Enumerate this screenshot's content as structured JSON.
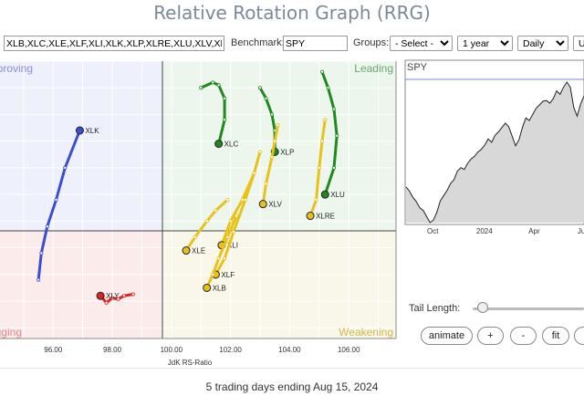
{
  "header": {
    "title": "Relative Rotation Graph (RRG)"
  },
  "controls": {
    "symbols_value": "XLB,XLC,XLE,XLF,XLI,XLK,XLP,XLRE,XLU,XLV,XLY",
    "benchmark_label": "Benchmark:",
    "benchmark_value": "SPY",
    "groups_label": "Groups:",
    "groups_selected": "- Select -",
    "period_selected": "1 year",
    "frequency_selected": "Daily",
    "trailing_selected": "U"
  },
  "quadrants": {
    "improving": "Improving",
    "leading": "Leading",
    "lagging": "Lagging",
    "weakening": "Weakening",
    "colors": {
      "improving": "#eef0fb",
      "leading": "#ecf6ec",
      "lagging": "#fcebeb",
      "weakening": "#f8f7ea"
    },
    "label_colors": {
      "improving": "#8a8ee0",
      "leading": "#6aab6a",
      "lagging": "#d88a8a",
      "weakening": "#d4b84a"
    }
  },
  "chart_data": {
    "type": "scatter",
    "xlabel": "JdK RS-Ratio",
    "x_ticks": [
      "96.00",
      "98.00",
      "100.00",
      "102.00",
      "104.00",
      "106.00"
    ],
    "xlim": [
      94.2,
      107.6
    ],
    "ylim": [
      97.3,
      102.5
    ],
    "center": [
      100,
      100
    ],
    "series": [
      {
        "name": "XLK",
        "color": "#3a4fd0",
        "head": true,
        "points": [
          [
            95.5,
            98.4
          ],
          [
            95.6,
            98.9
          ],
          [
            95.8,
            99.4
          ],
          [
            96.1,
            99.9
          ],
          [
            96.4,
            100.5
          ],
          [
            96.9,
            101.2
          ]
        ]
      },
      {
        "name": "XLY",
        "color": "#dd2222",
        "head": true,
        "points": [
          [
            98.7,
            98.13
          ],
          [
            98.4,
            98.1
          ],
          [
            98.2,
            98.04
          ],
          [
            98.0,
            98.06
          ],
          [
            97.8,
            97.97
          ],
          [
            97.6,
            98.1
          ]
        ]
      },
      {
        "name": "XLC",
        "color": "#1e8a1e",
        "head": true,
        "points": [
          [
            101.0,
            102.0
          ],
          [
            101.4,
            102.1
          ],
          [
            101.6,
            102.05
          ],
          [
            101.8,
            101.8
          ],
          [
            101.8,
            101.4
          ],
          [
            101.6,
            100.95
          ]
        ]
      },
      {
        "name": "XLP",
        "color": "#1e8a1e",
        "head": true,
        "points": [
          [
            103.0,
            102.0
          ],
          [
            103.2,
            101.8
          ],
          [
            103.4,
            101.5
          ],
          [
            103.5,
            101.2
          ],
          [
            103.5,
            100.8
          ]
        ]
      },
      {
        "name": "XLU",
        "color": "#1e8a1e",
        "head": true,
        "points": [
          [
            105.1,
            102.3
          ],
          [
            105.3,
            102.0
          ],
          [
            105.5,
            101.6
          ],
          [
            105.6,
            101.1
          ],
          [
            105.5,
            100.5
          ],
          [
            105.2,
            100.0
          ]
        ]
      },
      {
        "name": "XLV",
        "color": "#e8c21a",
        "head": true,
        "points": [
          [
            103.6,
            101.3
          ],
          [
            103.5,
            101.0
          ],
          [
            103.4,
            100.7
          ],
          [
            103.2,
            100.2
          ],
          [
            103.1,
            99.82
          ]
        ]
      },
      {
        "name": "XLRE",
        "color": "#e8c21a",
        "head": true,
        "points": [
          [
            105.2,
            101.4
          ],
          [
            105.1,
            101.0
          ],
          [
            105.0,
            100.5
          ],
          [
            104.9,
            99.9
          ],
          [
            104.7,
            99.6
          ]
        ]
      },
      {
        "name": "XLE",
        "color": "#e8c21a",
        "head": true,
        "points": [
          [
            101.9,
            99.9
          ],
          [
            101.5,
            99.7
          ],
          [
            101.2,
            99.5
          ],
          [
            100.8,
            99.2
          ],
          [
            100.5,
            98.95
          ]
        ]
      },
      {
        "name": "XLI",
        "color": "#e8c21a",
        "head": true,
        "points": [
          [
            103.0,
            100.8
          ],
          [
            102.8,
            100.4
          ],
          [
            102.4,
            99.9
          ],
          [
            102.0,
            99.5
          ],
          [
            101.7,
            99.05
          ]
        ]
      },
      {
        "name": "XLF",
        "color": "#e8c21a",
        "head": true,
        "points": [
          [
            102.8,
            100.4
          ],
          [
            102.5,
            99.9
          ],
          [
            102.1,
            99.3
          ],
          [
            101.8,
            98.8
          ],
          [
            101.5,
            98.5
          ]
        ]
      },
      {
        "name": "XLB",
        "color": "#e8c21a",
        "head": true,
        "points": [
          [
            102.2,
            99.6
          ],
          [
            101.9,
            99.2
          ],
          [
            101.6,
            98.8
          ],
          [
            101.4,
            98.5
          ],
          [
            101.2,
            98.25
          ]
        ]
      }
    ]
  },
  "spy_chart": {
    "label": "SPY",
    "x_ticks": [
      "Oct",
      "2024",
      "Apr",
      "Jul"
    ],
    "line_color": "#222222",
    "fill_color": "#d8d8d8",
    "ref_line_color": "#7a8ad8",
    "values": [
      4520,
      4470,
      4400,
      4350,
      4280,
      4250,
      4180,
      4110,
      4140,
      4230,
      4360,
      4420,
      4480,
      4560,
      4600,
      4700,
      4740,
      4720,
      4790,
      4840,
      4870,
      4920,
      4950,
      5000,
      5070,
      5030,
      5110,
      5150,
      5200,
      5250,
      5210,
      5100,
      4990,
      5060,
      5200,
      5310,
      5280,
      5350,
      5420,
      5460,
      5500,
      5510,
      5480,
      5530,
      5620,
      5580,
      5660,
      5720,
      5660,
      5430,
      5330,
      5470,
      5560
    ]
  },
  "tail": {
    "label": "Tail Length:",
    "value_fraction": 0.05
  },
  "buttons": {
    "animate": "animate",
    "plus": "+",
    "minus": "-",
    "fit": "fit"
  },
  "footer": {
    "status": "5 trading days ending Aug 15, 2024"
  }
}
